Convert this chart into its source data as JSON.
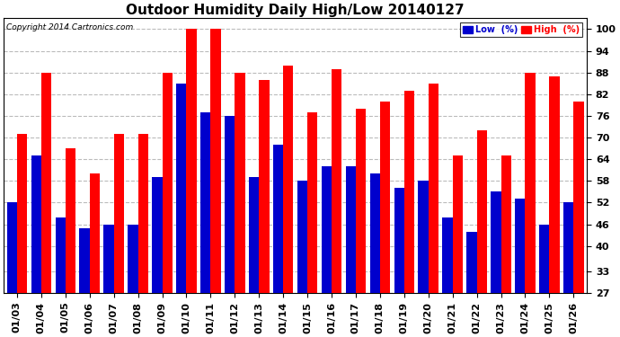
{
  "title": "Outdoor Humidity Daily High/Low 20140127",
  "copyright": "Copyright 2014 Cartronics.com",
  "dates": [
    "01/03",
    "01/04",
    "01/05",
    "01/06",
    "01/07",
    "01/08",
    "01/09",
    "01/10",
    "01/11",
    "01/12",
    "01/13",
    "01/14",
    "01/15",
    "01/16",
    "01/17",
    "01/18",
    "01/19",
    "01/20",
    "01/21",
    "01/22",
    "01/23",
    "01/24",
    "01/25",
    "01/26"
  ],
  "high_values": [
    71,
    88,
    67,
    60,
    71,
    71,
    88,
    100,
    100,
    88,
    86,
    90,
    77,
    89,
    78,
    80,
    83,
    85,
    65,
    72,
    65,
    88,
    87,
    80
  ],
  "low_values": [
    52,
    65,
    48,
    45,
    46,
    46,
    59,
    85,
    77,
    76,
    59,
    68,
    58,
    62,
    62,
    60,
    56,
    58,
    48,
    44,
    55,
    53,
    46,
    52
  ],
  "high_color": "#ff0000",
  "low_color": "#0000cd",
  "bg_color": "#ffffff",
  "plot_bg_color": "#ffffff",
  "grid_color": "#bbbbbb",
  "yticks": [
    27,
    33,
    40,
    46,
    52,
    58,
    64,
    70,
    76,
    82,
    88,
    94,
    100
  ],
  "ymin": 27,
  "ymax": 103,
  "bar_width": 0.42,
  "title_fontsize": 11,
  "tick_fontsize": 8,
  "legend_low_label": "Low  (%)",
  "legend_high_label": "High  (%)"
}
